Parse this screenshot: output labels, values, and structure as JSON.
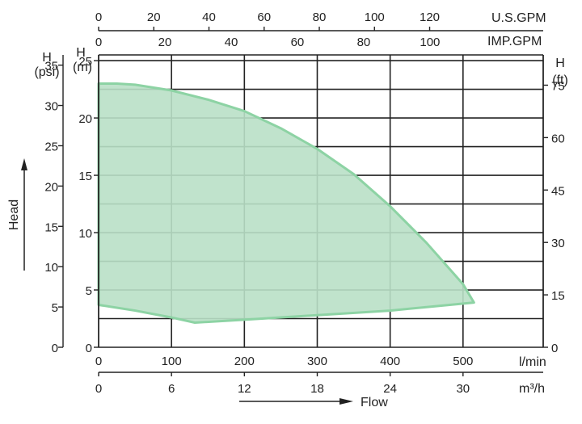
{
  "chart_data": {
    "type": "area",
    "x_unit": "l/min",
    "xlim": [
      0,
      610
    ],
    "ylim": [
      0,
      25.5
    ],
    "y_unit": "m",
    "grid": true,
    "envelope": {
      "upper": [
        [
          0,
          23
        ],
        [
          25,
          23
        ],
        [
          50,
          22.9
        ],
        [
          100,
          22.4
        ],
        [
          150,
          21.6
        ],
        [
          200,
          20.6
        ],
        [
          250,
          19.1
        ],
        [
          300,
          17.3
        ],
        [
          350,
          15.1
        ],
        [
          400,
          12.3
        ],
        [
          450,
          9.1
        ],
        [
          500,
          5.5
        ],
        [
          515,
          3.9
        ]
      ],
      "lower": [
        [
          0,
          3.7
        ],
        [
          50,
          3.2
        ],
        [
          100,
          2.6
        ],
        [
          132,
          2.15
        ],
        [
          200,
          2.4
        ],
        [
          300,
          2.8
        ],
        [
          400,
          3.2
        ],
        [
          515,
          3.9
        ]
      ],
      "fill": "#b9e0c6",
      "stroke": "#8dd3a4"
    },
    "axes": {
      "bottom_primary": {
        "unit": "l/min",
        "ticks": [
          "0",
          "100",
          "200",
          "300",
          "400",
          "500"
        ]
      },
      "bottom_secondary": {
        "unit": "m³/h",
        "ticks": [
          "0",
          "6",
          "12",
          "18",
          "24",
          "30"
        ]
      },
      "top_primary": {
        "unit": "U.S.GPM",
        "ticks": [
          "0",
          "20",
          "40",
          "60",
          "80",
          "100",
          "120"
        ]
      },
      "top_secondary": {
        "unit": "IMP.GPM",
        "ticks": [
          "0",
          "20",
          "40",
          "60",
          "80",
          "100"
        ]
      },
      "left_primary": {
        "title_top": "H",
        "title_bottom": "(m)",
        "ticks": [
          "0",
          "5",
          "10",
          "15",
          "20",
          "25"
        ]
      },
      "left_secondary": {
        "title_top": "H",
        "title_bottom": "(psi)",
        "ticks": [
          "0",
          "5",
          "10",
          "15",
          "20",
          "25",
          "30",
          "35"
        ]
      },
      "right": {
        "title_top": "H",
        "title_bottom": "(ft)",
        "ticks": [
          "0",
          "15",
          "30",
          "45",
          "60",
          "75"
        ]
      }
    },
    "head_label": "Head",
    "flow_label": "Flow"
  }
}
